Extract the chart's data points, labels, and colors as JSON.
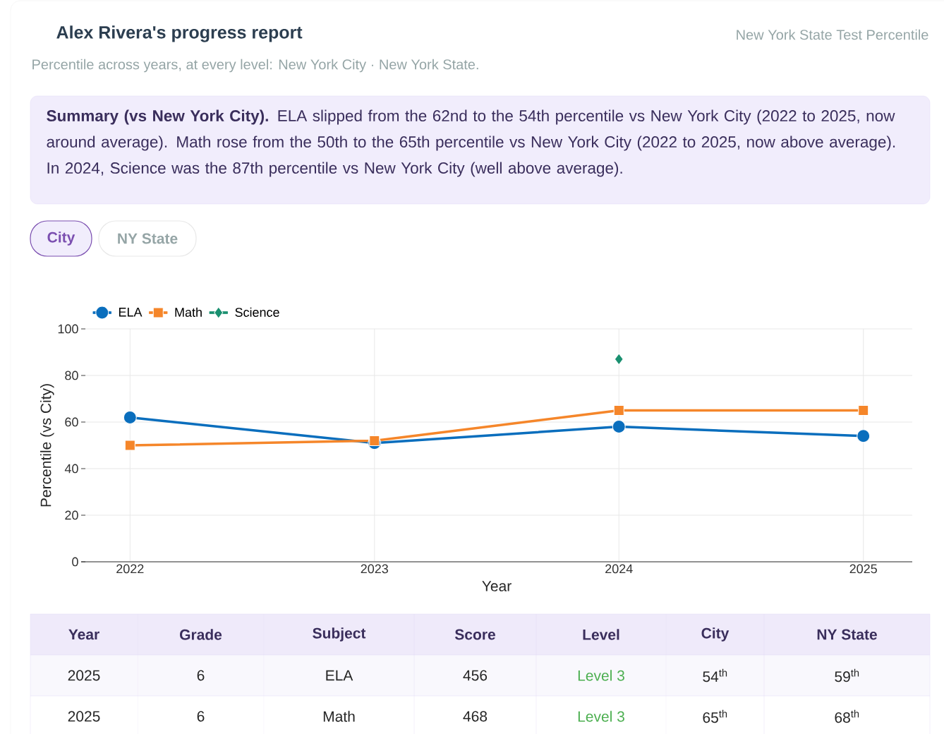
{
  "chart_data": {
    "type": "line",
    "title": "Alex Rivera's progress report",
    "subtitle": "Percentile across years, at every level: New York City · New York State.",
    "xlabel": "Year",
    "ylabel": "Percentile (vs City)",
    "x": [
      2022,
      2023,
      2024,
      2025
    ],
    "xlim": [
      2021.8,
      2025.2
    ],
    "xticks": [
      2022,
      2023,
      2024,
      2025
    ],
    "ylim": [
      0,
      100
    ],
    "yticks": [
      0,
      20,
      40,
      60,
      80,
      100
    ],
    "series": [
      {
        "name": "ELA",
        "color": "#0a6ebd",
        "marker": "circle",
        "values": [
          62,
          51,
          58,
          54
        ]
      },
      {
        "name": "Math",
        "color": "#f5862a",
        "marker": "square",
        "values": [
          50,
          52,
          65,
          65
        ]
      },
      {
        "name": "Science",
        "color": "#1a9070",
        "marker": "diamond",
        "values": [
          null,
          null,
          87,
          null
        ]
      }
    ],
    "grid": true,
    "legend": "top left",
    "line_style": "solid",
    "annotations": [
      "New York State Test Percentile",
      "**Summary (vs New York City).** ELA slipped from the 62nd to the 54th percentile vs New York City (2022 to 2025, now around average). Math rose from the 50th to the 65th percentile vs New York City (2022 to 2025, now above average). In 2024, Science was the 87th percentile vs New York City (well above average).",
      "City",
      "NY State",
      "Year",
      "Grade",
      "Subject",
      "Score",
      "Level",
      "City",
      "NY State",
      "2025",
      "6",
      "ELA",
      "456",
      "Level 3",
      "54$^{th}$",
      "59$^{th}$",
      "2025",
      "6",
      "Math",
      "468",
      "Level 3",
      "65$^{th}$",
      "68$^{th}$"
    ]
  }
}
